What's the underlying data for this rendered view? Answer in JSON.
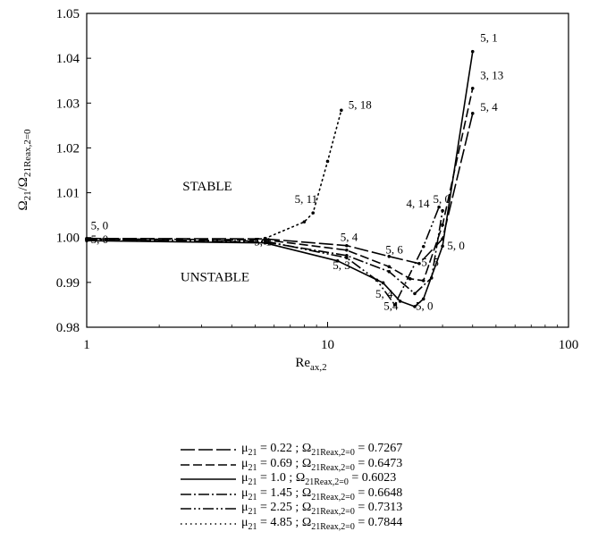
{
  "chart_data": {
    "type": "line",
    "title": "",
    "xlabel": "Re_ax,2",
    "ylabel": "Ω21/Ω21Reax,2=0",
    "xscale": "log",
    "xlim": [
      1,
      100
    ],
    "ylim": [
      0.98,
      1.05
    ],
    "x_ticks": [
      "1",
      "10",
      "100"
    ],
    "y_ticks": [
      "0.98",
      "0.99",
      "1.00",
      "1.01",
      "1.02",
      "1.03",
      "1.04",
      "1.05"
    ],
    "grid": false,
    "legend_position": "bottom",
    "region_labels": [
      "STABLE",
      "UNSTABLE"
    ],
    "series": [
      {
        "name": "μ21 = 0.22 ; Ω21Reax,2=0 = 0.7267",
        "style": "long-dash",
        "points": [
          [
            1,
            0.9998
          ],
          [
            5.5,
            0.9997
          ],
          [
            12,
            0.9982
          ],
          [
            18,
            0.9958
          ],
          [
            24,
            0.9942
          ],
          [
            30,
            0.9997
          ],
          [
            40,
            1.0277
          ]
        ]
      },
      {
        "name": "μ21 = 0.69 ; Ω21Reax,2=0 = 0.6473",
        "style": "dash",
        "points": [
          [
            1,
            0.9997
          ],
          [
            5.5,
            0.9995
          ],
          [
            12,
            0.9972
          ],
          [
            18,
            0.9935
          ],
          [
            22,
            0.9908
          ],
          [
            25,
            0.9904
          ],
          [
            30,
            1.0028
          ],
          [
            40,
            1.0333
          ]
        ]
      },
      {
        "name": "μ21 = 1.0 ; Ω21Reax,2=0 = 0.6023",
        "style": "solid",
        "points": [
          [
            1,
            0.9993
          ],
          [
            5.5,
            0.9988
          ],
          [
            11,
            0.9948
          ],
          [
            17,
            0.9899
          ],
          [
            20,
            0.9858
          ],
          [
            23,
            0.9846
          ],
          [
            25,
            0.9863
          ],
          [
            30,
            0.9981
          ],
          [
            40,
            1.0415
          ]
        ]
      },
      {
        "name": "μ21 = 1.45 ; Ω21Reax,2=0 = 0.6648",
        "style": "dash-dot",
        "points": [
          [
            1,
            0.9995
          ],
          [
            5.5,
            0.999
          ],
          [
            12,
            0.996
          ],
          [
            18,
            0.9924
          ],
          [
            23,
            0.9875
          ],
          [
            27,
            0.991
          ],
          [
            30,
            1.006
          ]
        ]
      },
      {
        "name": "μ21 = 2.25 ; Ω21Reax,2=0 = 0.7313",
        "style": "dash-dot-dot",
        "points": [
          [
            1,
            0.9996
          ],
          [
            5.5,
            0.9992
          ],
          [
            12,
            0.9955
          ],
          [
            16,
            0.9905
          ],
          [
            19,
            0.985
          ],
          [
            25,
            0.998
          ],
          [
            29,
            1.0068
          ]
        ]
      },
      {
        "name": "μ21 = 4.85 ; Ω21Reax,2=0 = 0.7844",
        "style": "dotted",
        "points": [
          [
            5.5,
            0.9998
          ],
          [
            8,
            1.0035
          ],
          [
            8.7,
            1.0055
          ],
          [
            10,
            1.017
          ],
          [
            11.4,
            1.0284
          ]
        ]
      }
    ],
    "annotations": [
      {
        "text": "5, 1",
        "x": 43,
        "y": 1.0437
      },
      {
        "text": "3, 13",
        "x": 43,
        "y": 1.0353
      },
      {
        "text": "5, 4",
        "x": 43,
        "y": 1.0283
      },
      {
        "text": "5, 18",
        "x": 12.2,
        "y": 1.0288
      },
      {
        "text": "5, 11",
        "x": 7.3,
        "y": 1.0077
      },
      {
        "text": "4, 14",
        "x": 21.2,
        "y": 1.0067
      },
      {
        "text": "5, 0",
        "x": 27.4,
        "y": 1.0077
      },
      {
        "text": "5, 0",
        "x": 1.04,
        "y": 1.0018
      },
      {
        "text": "5, 0",
        "x": 1.04,
        "y": 0.9987
      },
      {
        "text": "5, 4",
        "x": 11.3,
        "y": 0.9992
      },
      {
        "text": "5, 6",
        "x": 17.4,
        "y": 0.9965
      },
      {
        "text": "5, 1",
        "x": 4.95,
        "y": 0.9982
      },
      {
        "text": "5, 0",
        "x": 31.4,
        "y": 0.9974
      },
      {
        "text": "5, 5",
        "x": 24.5,
        "y": 0.9937
      },
      {
        "text": "5, 3",
        "x": 10.5,
        "y": 0.993
      },
      {
        "text": "5, 4",
        "x": 15.8,
        "y": 0.9866
      },
      {
        "text": "5,4",
        "x": 17.1,
        "y": 0.9839
      },
      {
        "text": "5, 0",
        "x": 23.2,
        "y": 0.9839
      }
    ]
  },
  "legend": {
    "items": [
      {
        "mu_label": "μ",
        "mu_sub": "21",
        "mu_value": " = 0.22 ; ",
        "omega_label": "Ω",
        "omega_sub": "21Reax,2=0",
        "omega_value": " = 0.7267"
      },
      {
        "mu_label": "μ",
        "mu_sub": "21",
        "mu_value": " = 0.69 ; ",
        "omega_label": "Ω",
        "omega_sub": "21Reax,2=0",
        "omega_value": " = 0.6473"
      },
      {
        "mu_label": "μ",
        "mu_sub": "21",
        "mu_value": " = 1.0   ; ",
        "omega_label": "Ω",
        "omega_sub": "21Reax,2=0",
        "omega_value": " = 0.6023"
      },
      {
        "mu_label": "μ",
        "mu_sub": "21",
        "mu_value": " = 1.45 ; ",
        "omega_label": "Ω",
        "omega_sub": "21Reax,2=0",
        "omega_value": " = 0.6648"
      },
      {
        "mu_label": "μ",
        "mu_sub": "21",
        "mu_value": " = 2.25 ; ",
        "omega_label": "Ω",
        "omega_sub": "21Reax,2=0",
        "omega_value": " = 0.7313"
      },
      {
        "mu_label": "μ",
        "mu_sub": "21",
        "mu_value": " = 4.85 ; ",
        "omega_label": "Ω",
        "omega_sub": "21Reax,2=0",
        "omega_value": " = 0.7844"
      }
    ]
  },
  "axis_text": {
    "xlabel_main": "Re",
    "xlabel_sub": "ax,2",
    "ylabel_main": "Ω",
    "ylabel_sub1": "21",
    "ylabel_slash": "/Ω",
    "ylabel_sub2": "21Reax,2=0"
  }
}
